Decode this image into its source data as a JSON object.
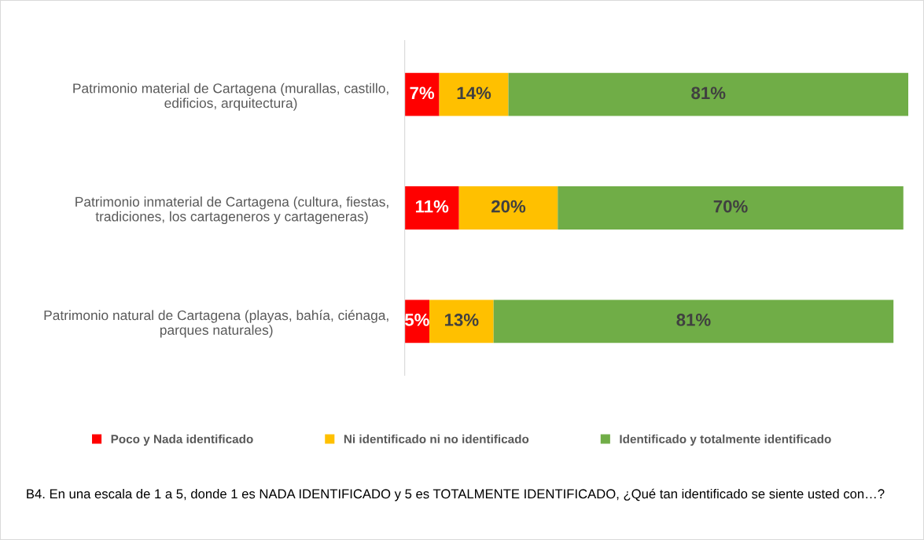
{
  "chart_data": {
    "type": "bar",
    "orientation": "horizontal",
    "stacked": true,
    "legend": "bottom",
    "grid": false,
    "categories": [
      "Patrimonio material de Cartagena (murallas, castillo,\nedificios, arquitectura)",
      "Patrimonio inmaterial de Cartagena (cultura, fiestas,\ntradiciones, los cartageneros y cartageneras)",
      "Patrimonio natural de Cartagena (playas, bahía, ciénaga,\nparques naturales)"
    ],
    "series": [
      {
        "name": "Poco y Nada identificado",
        "color": "#ff0000",
        "values": [
          7,
          11,
          5
        ],
        "value_labels": [
          "7%",
          "11%",
          "5%"
        ]
      },
      {
        "name": "Ni identificado ni no identificado",
        "color": "#ffc000",
        "values": [
          14,
          20,
          13
        ],
        "value_labels": [
          "14%",
          "20%",
          "13%"
        ]
      },
      {
        "name": "Identificado y totalmente identificado",
        "color": "#70ad47",
        "values": [
          81,
          70,
          81
        ],
        "value_labels": [
          "81%",
          "70%",
          "81%"
        ]
      }
    ],
    "annotations": [
      "B4. En una escala de 1 a 5, donde 1 es NADA IDENTIFICADO y 5 es TOTALMENTE IDENTIFICADO, ¿Qué tan identificado se siente usted con…?"
    ]
  }
}
